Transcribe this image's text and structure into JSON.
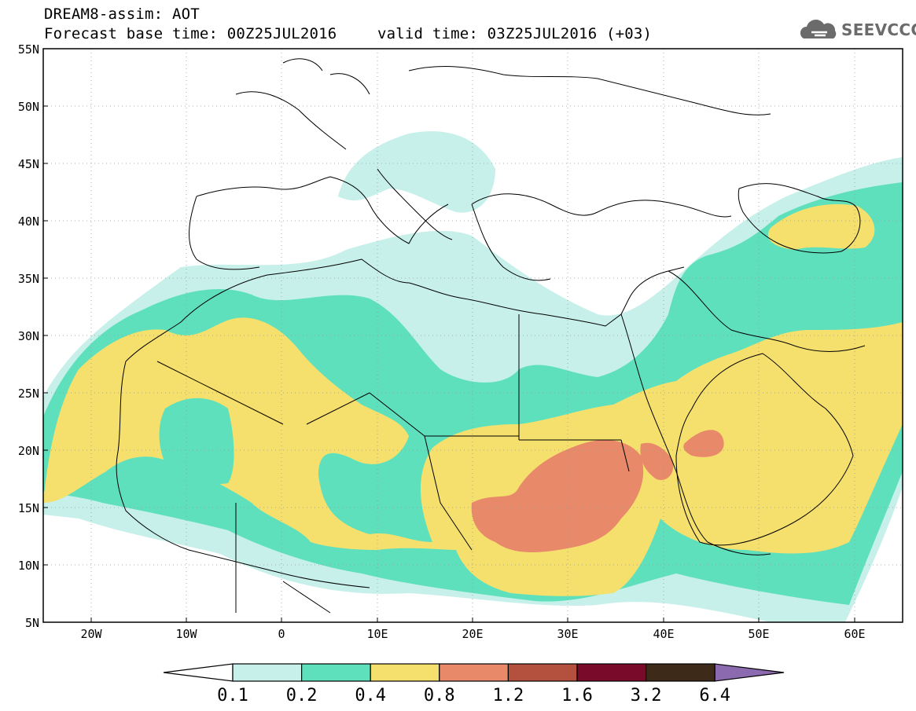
{
  "header": {
    "line1": "DREAM8-assim: AOT",
    "line2": "Forecast base time: 00Z25JUL2016",
    "line3": "valid time: 03Z25JUL2016 (+03)"
  },
  "logo": {
    "text": "SEEVCCC",
    "icon": "cloud-icon"
  },
  "axes": {
    "lat_labels": [
      "55N",
      "50N",
      "45N",
      "40N",
      "35N",
      "30N",
      "25N",
      "20N",
      "15N",
      "10N",
      "5N"
    ],
    "lon_labels": [
      "20W",
      "10W",
      "0",
      "10E",
      "20E",
      "30E",
      "40E",
      "50E",
      "60E"
    ]
  },
  "colorbar": {
    "labels": [
      "0.1",
      "0.2",
      "0.4",
      "0.8",
      "1.2",
      "1.6",
      "3.2",
      "6.4"
    ],
    "colors": [
      "#ffffff",
      "#c7f0ea",
      "#5fe0bd",
      "#f5e06e",
      "#e8896a",
      "#b3503e",
      "#7a0a2a",
      "#3d2a18",
      "#8c6ab0"
    ]
  }
}
